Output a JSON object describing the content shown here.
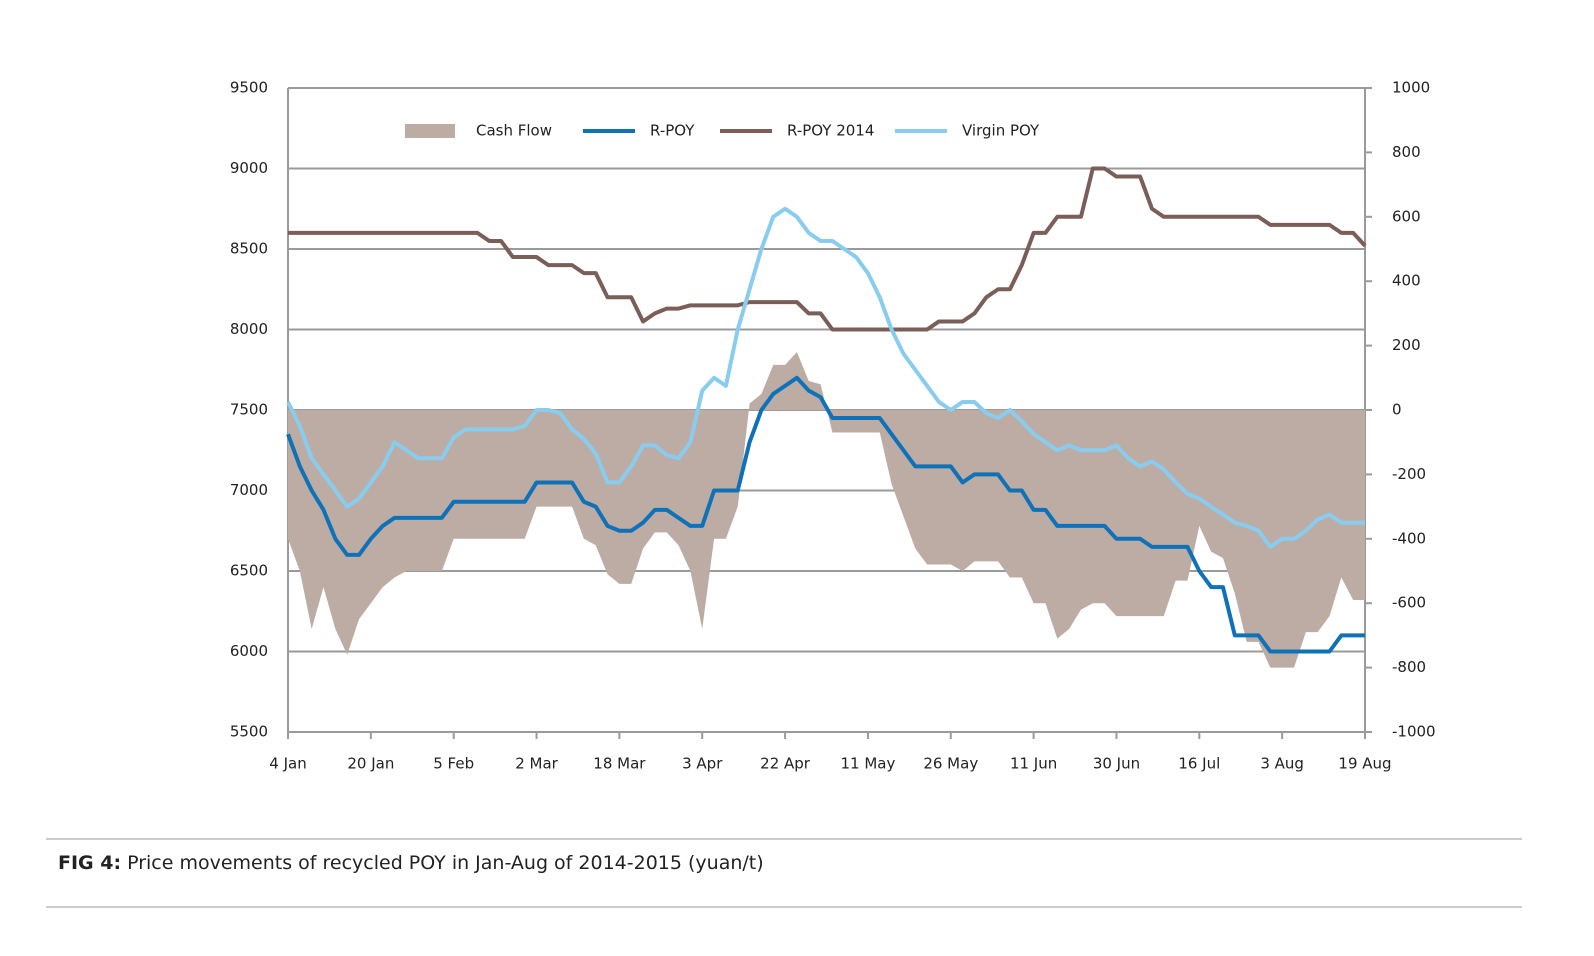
{
  "chart_data": {
    "type": "line",
    "caption_label": "FIG 4:",
    "caption_text": "Price movements of recycled POY in Jan-Aug of 2014-2015 (yuan/t)",
    "categories": [
      "4 Jan",
      null,
      null,
      null,
      null,
      null,
      null,
      "20 Jan",
      null,
      null,
      null,
      null,
      null,
      null,
      "5 Feb",
      null,
      null,
      null,
      null,
      null,
      null,
      "2 Mar",
      null,
      null,
      null,
      null,
      null,
      null,
      "18 Mar",
      null,
      null,
      null,
      null,
      null,
      null,
      "3 Apr",
      null,
      null,
      null,
      null,
      null,
      null,
      "22 Apr",
      null,
      null,
      null,
      null,
      null,
      null,
      "11 May",
      null,
      null,
      null,
      null,
      null,
      null,
      "26 May",
      null,
      null,
      null,
      null,
      null,
      null,
      "11 Jun",
      null,
      null,
      null,
      null,
      null,
      null,
      "30 Jun",
      null,
      null,
      null,
      null,
      null,
      null,
      "16 Jul",
      null,
      null,
      null,
      null,
      null,
      null,
      "3 Aug",
      null,
      null,
      null,
      null,
      null,
      null,
      "19 Aug"
    ],
    "series": [
      {
        "name": "Cash Flow",
        "type": "area",
        "axis": "y2",
        "color": "#bcaca4",
        "values": [
          -400,
          -500,
          -680,
          -550,
          -680,
          -760,
          -650,
          -600,
          -550,
          -520,
          -500,
          -500,
          -500,
          -500,
          -400,
          -400,
          -400,
          -400,
          -400,
          -400,
          -400,
          -300,
          -300,
          -300,
          -300,
          -400,
          -420,
          -510,
          -540,
          -540,
          -430,
          -380,
          -380,
          -420,
          -500,
          -680,
          -400,
          -400,
          -300,
          20,
          50,
          140,
          140,
          180,
          90,
          80,
          -70,
          -70,
          -70,
          -70,
          -70,
          -230,
          -330,
          -430,
          -480,
          -480,
          -480,
          -500,
          -470,
          -470,
          -470,
          -520,
          -520,
          -600,
          -600,
          -710,
          -680,
          -620,
          -600,
          -600,
          -640,
          -640,
          -640,
          -640,
          -640,
          -530,
          -530,
          -360,
          -440,
          -460,
          -570,
          -720,
          -720,
          -800,
          -800,
          -800,
          -690,
          -690,
          -640,
          -520,
          -590,
          -590
        ]
      },
      {
        "name": "R-POY",
        "color": "#0f72b9",
        "values": [
          7350,
          7150,
          7000,
          6880,
          6700,
          6600,
          6600,
          6700,
          6780,
          6830,
          6830,
          6830,
          6830,
          6830,
          6930,
          6930,
          6930,
          6930,
          6930,
          6930,
          6930,
          7050,
          7050,
          7050,
          7050,
          6930,
          6900,
          6780,
          6750,
          6750,
          6800,
          6880,
          6880,
          6830,
          6780,
          6780,
          7000,
          7000,
          7000,
          7300,
          7500,
          7600,
          7650,
          7700,
          7620,
          7580,
          7450,
          7450,
          7450,
          7450,
          7450,
          7350,
          7250,
          7150,
          7150,
          7150,
          7150,
          7050,
          7100,
          7100,
          7100,
          7000,
          7000,
          6880,
          6880,
          6780,
          6780,
          6780,
          6780,
          6780,
          6700,
          6700,
          6700,
          6650,
          6650,
          6650,
          6650,
          6500,
          6400,
          6400,
          6100,
          6100,
          6100,
          6000,
          6000,
          6000,
          6000,
          6000,
          6000,
          6100,
          6100,
          6100
        ]
      },
      {
        "name": "R-POY 2014",
        "color": "#7a5e57",
        "values": [
          8600,
          8600,
          8600,
          8600,
          8600,
          8600,
          8600,
          8600,
          8600,
          8600,
          8600,
          8600,
          8600,
          8600,
          8600,
          8600,
          8600,
          8550,
          8550,
          8450,
          8450,
          8450,
          8400,
          8400,
          8400,
          8350,
          8350,
          8200,
          8200,
          8200,
          8050,
          8100,
          8130,
          8130,
          8150,
          8150,
          8150,
          8150,
          8150,
          8170,
          8170,
          8170,
          8170,
          8170,
          8100,
          8100,
          8000,
          8000,
          8000,
          8000,
          8000,
          8000,
          8000,
          8000,
          8000,
          8050,
          8050,
          8050,
          8100,
          8200,
          8250,
          8250,
          8400,
          8600,
          8600,
          8700,
          8700,
          8700,
          9000,
          9000,
          8950,
          8950,
          8950,
          8750,
          8700,
          8700,
          8700,
          8700,
          8700,
          8700,
          8700,
          8700,
          8700,
          8650,
          8650,
          8650,
          8650,
          8650,
          8650,
          8600,
          8600,
          8520
        ]
      },
      {
        "name": "Virgin POY",
        "color": "#88cdef",
        "values": [
          7550,
          7400,
          7200,
          7100,
          7000,
          6900,
          6950,
          7050,
          7150,
          7300,
          7250,
          7200,
          7200,
          7200,
          7330,
          7380,
          7380,
          7380,
          7380,
          7380,
          7400,
          7500,
          7500,
          7480,
          7380,
          7320,
          7230,
          7050,
          7050,
          7150,
          7280,
          7280,
          7220,
          7200,
          7300,
          7620,
          7700,
          7650,
          8000,
          8250,
          8500,
          8700,
          8750,
          8700,
          8600,
          8550,
          8550,
          8500,
          8450,
          8350,
          8200,
          8000,
          7850,
          7750,
          7650,
          7550,
          7500,
          7550,
          7550,
          7480,
          7450,
          7500,
          7430,
          7350,
          7300,
          7250,
          7280,
          7250,
          7250,
          7250,
          7280,
          7200,
          7150,
          7180,
          7130,
          7050,
          6980,
          6950,
          6900,
          6850,
          6800,
          6780,
          6750,
          6650,
          6700,
          6700,
          6750,
          6820,
          6850,
          6800,
          6800,
          6800
        ]
      }
    ],
    "ylim": [
      5500,
      9500
    ],
    "yticks": [
      5500,
      6000,
      6500,
      7000,
      7500,
      8000,
      8500,
      9000,
      9500
    ],
    "y2lim": [
      -1000,
      1000
    ],
    "y2ticks": [
      -1000,
      -800,
      -600,
      -400,
      -200,
      0,
      200,
      400,
      600,
      800,
      1000
    ],
    "grid": true
  }
}
